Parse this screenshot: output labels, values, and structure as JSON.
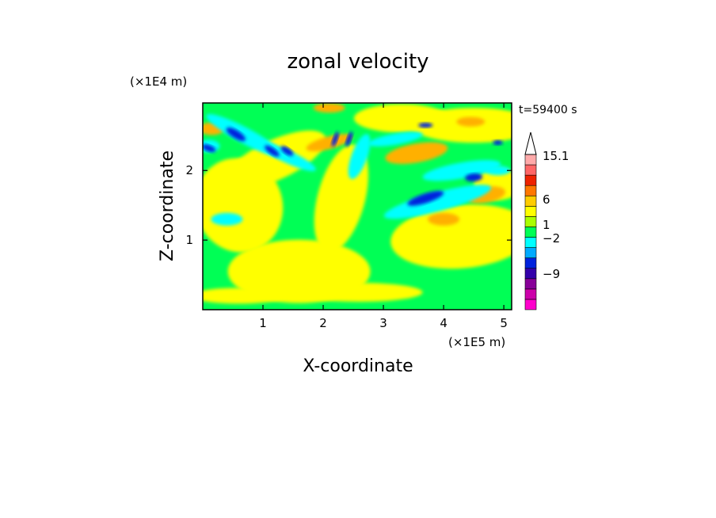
{
  "chart_data": {
    "type": "heatmap",
    "title": "zonal velocity",
    "xlabel": "X-coordinate",
    "ylabel": "Z-coordinate",
    "x_unit": "(×1E5 m)",
    "y_unit": "(×1E4 m)",
    "time_label": "t=59400 s",
    "xlim": [
      0,
      5.13
    ],
    "ylim": [
      0,
      2.97
    ],
    "x_ticks": [
      1,
      2,
      3,
      4,
      5
    ],
    "y_ticks": [
      1,
      2
    ],
    "colorbar": {
      "levels_shown": [
        "15.1",
        "6",
        "1",
        "−2",
        "−9"
      ],
      "colors": [
        "#ff00cc",
        "#cc00aa",
        "#880099",
        "#3300aa",
        "#0022dd",
        "#00aaff",
        "#00ffff",
        "#00ff55",
        "#aaff00",
        "#ffff00",
        "#ffcc00",
        "#ff7700",
        "#ee2200",
        "#ff6666",
        "#ffaaaa"
      ],
      "extend": "max"
    },
    "colors": {
      "background_field": "#00ff55",
      "weak_positive": "#ffff00",
      "moderate_positive": "#ffb000",
      "weak_negative": "#00ffff",
      "strong_negative": "#0022dd"
    }
  }
}
